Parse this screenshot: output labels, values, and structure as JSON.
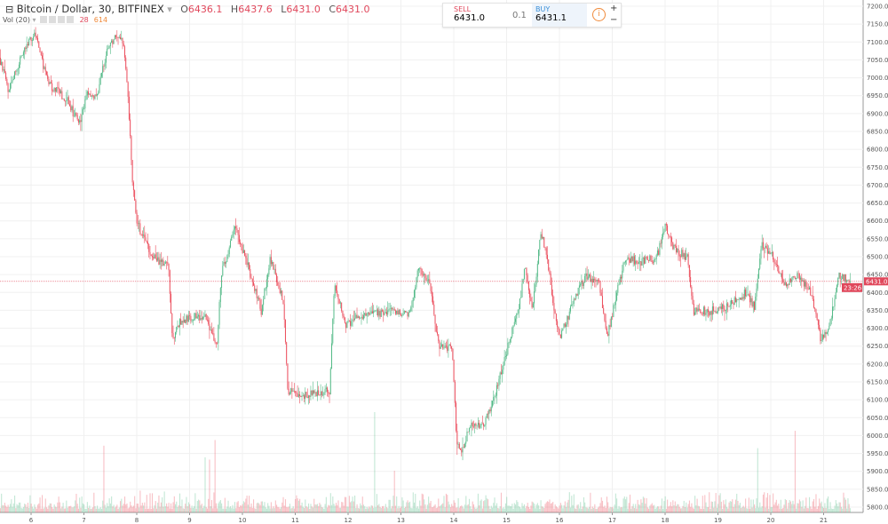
{
  "header": {
    "symbol": "Bitcoin / Dollar, 30, BITFINEX",
    "o_label": "O",
    "o": "6436.1",
    "h_label": "H",
    "h": "6437.6",
    "l_label": "L",
    "l": "6431.0",
    "c_label": "C",
    "c": "6431.0"
  },
  "volume_legend": {
    "label": "Vol (20)",
    "value": "28",
    "ma": "614"
  },
  "trade": {
    "sell_label": "SELL",
    "sell_price": "6431.0",
    "qty": "0.1",
    "buy_label": "BUY",
    "buy_price": "6431.1",
    "plus": "+",
    "minus": "−"
  },
  "last_price": {
    "value": "6431.0",
    "countdown": "23:26"
  },
  "colors": {
    "up": "#53b987",
    "down": "#eb4d5c",
    "grid": "#f0f0f0",
    "last": "#e0475b"
  },
  "chart_data": {
    "type": "candlestick",
    "interval_minutes": 30,
    "ylim": [
      5800,
      7200
    ],
    "y_ticks": [
      5800,
      5850,
      5900,
      5950,
      6000,
      6050,
      6100,
      6150,
      6200,
      6250,
      6300,
      6350,
      6400,
      6450,
      6500,
      6550,
      6600,
      6650,
      6700,
      6750,
      6800,
      6850,
      6900,
      6950,
      7000,
      7050,
      7100,
      7150,
      7200
    ],
    "x_ticks": [
      6,
      7,
      8,
      9,
      10,
      11,
      12,
      13,
      14,
      15,
      16,
      17,
      18,
      19,
      20,
      21
    ],
    "xlim": [
      5.41,
      21.75
    ],
    "grid": true,
    "close_path": [
      [
        5.41,
        7056
      ],
      [
        5.58,
        6969
      ],
      [
        5.75,
        7031
      ],
      [
        6.08,
        7130
      ],
      [
        6.34,
        6980
      ],
      [
        6.67,
        6944
      ],
      [
        6.92,
        6870
      ],
      [
        7.09,
        6957
      ],
      [
        7.26,
        6944
      ],
      [
        7.43,
        7068
      ],
      [
        7.6,
        7118
      ],
      [
        7.76,
        7105
      ],
      [
        7.85,
        6944
      ],
      [
        7.93,
        6720
      ],
      [
        8.02,
        6597
      ],
      [
        8.18,
        6535
      ],
      [
        8.35,
        6497
      ],
      [
        8.61,
        6472
      ],
      [
        8.69,
        6274
      ],
      [
        8.86,
        6324
      ],
      [
        9.28,
        6336
      ],
      [
        9.53,
        6249
      ],
      [
        9.61,
        6448
      ],
      [
        9.87,
        6584
      ],
      [
        10.12,
        6472
      ],
      [
        10.37,
        6348
      ],
      [
        10.54,
        6497
      ],
      [
        10.79,
        6373
      ],
      [
        10.87,
        6125
      ],
      [
        11.13,
        6113
      ],
      [
        11.66,
        6125
      ],
      [
        11.75,
        6423
      ],
      [
        11.97,
        6311
      ],
      [
        12.3,
        6336
      ],
      [
        12.81,
        6348
      ],
      [
        13.18,
        6336
      ],
      [
        13.34,
        6472
      ],
      [
        13.56,
        6423
      ],
      [
        13.73,
        6249
      ],
      [
        13.98,
        6249
      ],
      [
        14.07,
        5976
      ],
      [
        14.15,
        5951
      ],
      [
        14.32,
        6026
      ],
      [
        14.57,
        6026
      ],
      [
        14.82,
        6125
      ],
      [
        15.08,
        6274
      ],
      [
        15.24,
        6348
      ],
      [
        15.36,
        6472
      ],
      [
        15.5,
        6348
      ],
      [
        15.66,
        6572
      ],
      [
        15.75,
        6522
      ],
      [
        15.92,
        6348
      ],
      [
        16.03,
        6274
      ],
      [
        16.34,
        6398
      ],
      [
        16.54,
        6448
      ],
      [
        16.76,
        6423
      ],
      [
        16.92,
        6274
      ],
      [
        17.09,
        6398
      ],
      [
        17.26,
        6497
      ],
      [
        17.51,
        6485
      ],
      [
        17.85,
        6497
      ],
      [
        18.02,
        6584
      ],
      [
        18.18,
        6522
      ],
      [
        18.44,
        6497
      ],
      [
        18.55,
        6348
      ],
      [
        18.86,
        6348
      ],
      [
        19.19,
        6361
      ],
      [
        19.53,
        6398
      ],
      [
        19.7,
        6361
      ],
      [
        19.83,
        6535
      ],
      [
        20.03,
        6510
      ],
      [
        20.29,
        6423
      ],
      [
        20.54,
        6448
      ],
      [
        20.79,
        6398
      ],
      [
        20.96,
        6261
      ],
      [
        21.13,
        6311
      ],
      [
        21.29,
        6448
      ],
      [
        21.51,
        6431
      ]
    ]
  }
}
